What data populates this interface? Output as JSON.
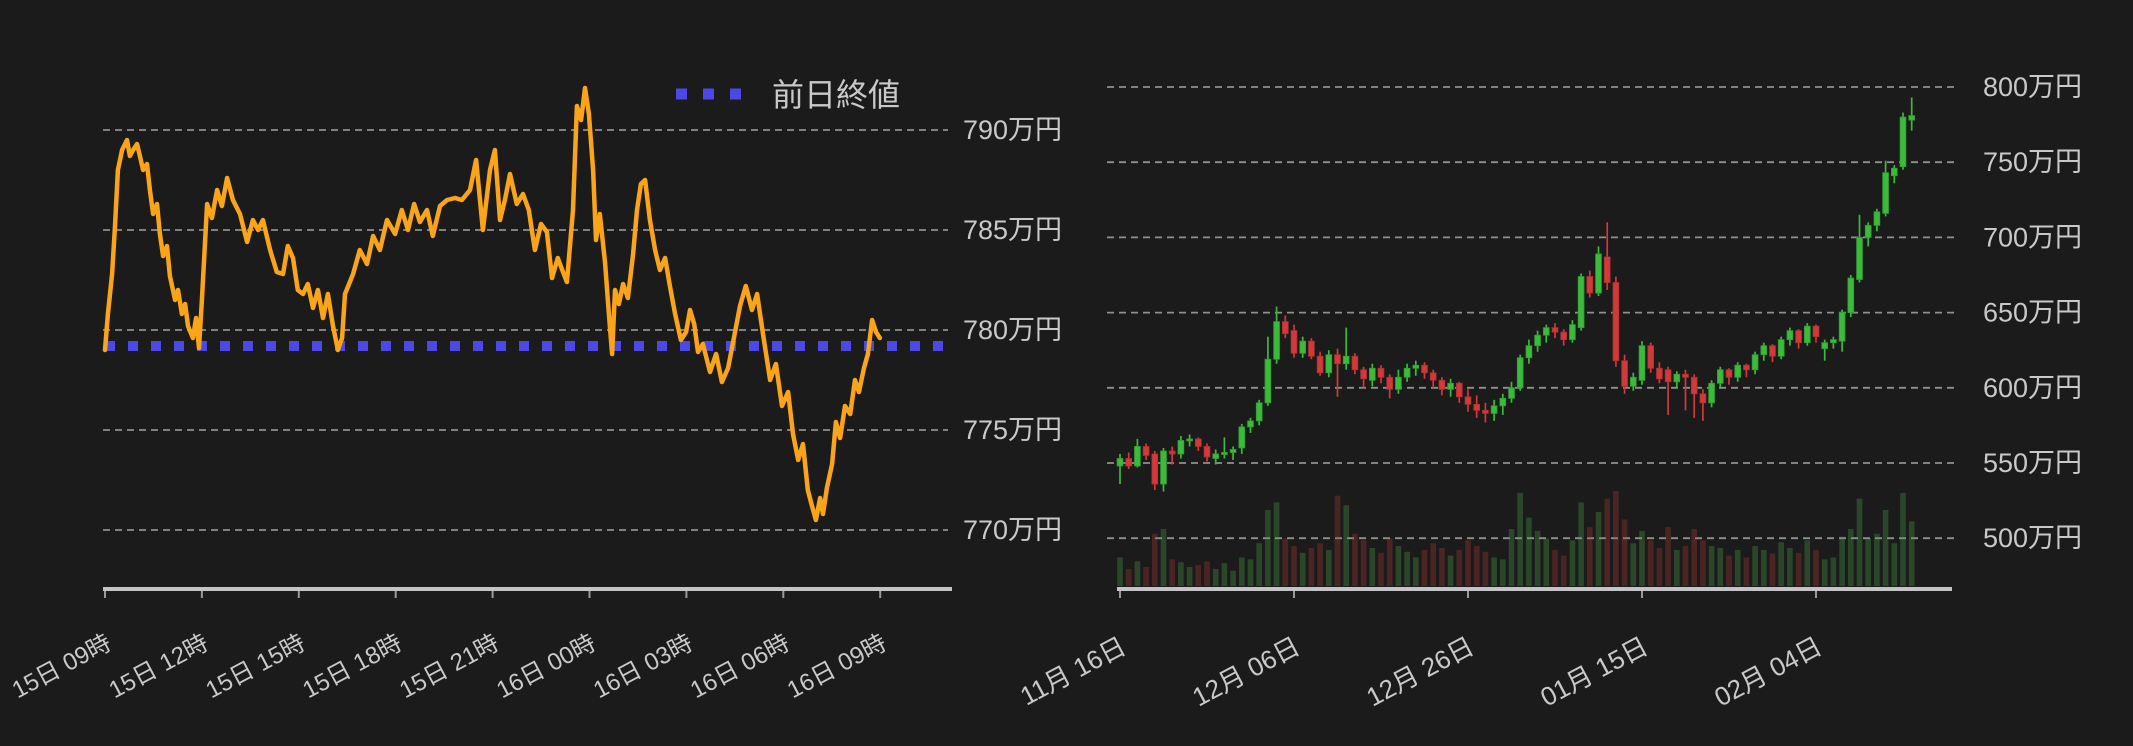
{
  "page": {
    "background": "#1b1b1c",
    "text_color": "#c9c9c9",
    "axis_color": "#c4c4c4",
    "grid_color": "#bdbdbd"
  },
  "legend": {
    "prev_close_label": "前日終値",
    "swatch_color": "#4a49e8"
  },
  "chart_data": [
    {
      "type": "line",
      "name": "intraday-price",
      "line_color": "#faa41a",
      "prev_close_value": 779.2,
      "prev_close_color": "#4a49e8",
      "unit": "万円",
      "y_ticks": [
        790,
        785,
        780,
        775,
        770
      ],
      "y_tick_labels": [
        "790万円",
        "785万円",
        "780万円",
        "775万円",
        "770万円"
      ],
      "x_tick_hours": [
        0,
        3,
        6,
        9,
        12,
        15,
        18,
        21,
        24
      ],
      "x_tick_labels": [
        "15日 09時",
        "15日 12時",
        "15日 15時",
        "15日 18時",
        "15日 21時",
        "16日 00時",
        "16日 03時",
        "16日 06時",
        "16日 09時"
      ],
      "points": [
        [
          0.0,
          779.0
        ],
        [
          0.09,
          780.8
        ],
        [
          0.22,
          782.8
        ],
        [
          0.31,
          785.2
        ],
        [
          0.4,
          788.0
        ],
        [
          0.53,
          789.0
        ],
        [
          0.68,
          789.5
        ],
        [
          0.77,
          788.7
        ],
        [
          0.87,
          789.0
        ],
        [
          0.99,
          789.3
        ],
        [
          1.08,
          788.7
        ],
        [
          1.18,
          788.0
        ],
        [
          1.3,
          788.3
        ],
        [
          1.39,
          787.0
        ],
        [
          1.49,
          785.8
        ],
        [
          1.61,
          786.3
        ],
        [
          1.7,
          784.8
        ],
        [
          1.8,
          783.7
        ],
        [
          1.92,
          784.2
        ],
        [
          2.01,
          782.7
        ],
        [
          2.17,
          781.5
        ],
        [
          2.26,
          782.0
        ],
        [
          2.38,
          780.8
        ],
        [
          2.48,
          781.3
        ],
        [
          2.57,
          780.2
        ],
        [
          2.72,
          779.6
        ],
        [
          2.82,
          780.6
        ],
        [
          2.91,
          779.1
        ],
        [
          3.0,
          781.5
        ],
        [
          3.16,
          786.3
        ],
        [
          3.31,
          785.6
        ],
        [
          3.47,
          787.0
        ],
        [
          3.62,
          786.2
        ],
        [
          3.78,
          787.6
        ],
        [
          3.96,
          786.5
        ],
        [
          4.18,
          785.8
        ],
        [
          4.4,
          784.4
        ],
        [
          4.58,
          785.5
        ],
        [
          4.74,
          785.0
        ],
        [
          4.89,
          785.5
        ],
        [
          5.11,
          784.0
        ],
        [
          5.32,
          782.9
        ],
        [
          5.51,
          782.8
        ],
        [
          5.66,
          784.2
        ],
        [
          5.82,
          783.6
        ],
        [
          5.97,
          782.0
        ],
        [
          6.13,
          781.8
        ],
        [
          6.28,
          782.3
        ],
        [
          6.44,
          781.1
        ],
        [
          6.59,
          782.0
        ],
        [
          6.75,
          780.6
        ],
        [
          6.9,
          781.8
        ],
        [
          7.06,
          780.2
        ],
        [
          7.21,
          779.0
        ],
        [
          7.34,
          779.6
        ],
        [
          7.43,
          781.8
        ],
        [
          7.68,
          782.8
        ],
        [
          7.89,
          784.0
        ],
        [
          8.11,
          783.3
        ],
        [
          8.3,
          784.7
        ],
        [
          8.51,
          784.0
        ],
        [
          8.73,
          785.5
        ],
        [
          8.98,
          784.8
        ],
        [
          9.19,
          786.0
        ],
        [
          9.38,
          785.0
        ],
        [
          9.57,
          786.3
        ],
        [
          9.75,
          785.4
        ],
        [
          9.97,
          786.0
        ],
        [
          10.15,
          784.7
        ],
        [
          10.37,
          786.2
        ],
        [
          10.59,
          786.5
        ],
        [
          10.84,
          786.6
        ],
        [
          11.05,
          786.5
        ],
        [
          11.3,
          787.0
        ],
        [
          11.49,
          788.5
        ],
        [
          11.7,
          785.0
        ],
        [
          11.92,
          788.0
        ],
        [
          12.07,
          789.0
        ],
        [
          12.23,
          785.5
        ],
        [
          12.38,
          786.5
        ],
        [
          12.54,
          787.8
        ],
        [
          12.75,
          786.3
        ],
        [
          12.94,
          786.8
        ],
        [
          13.12,
          786.0
        ],
        [
          13.31,
          784.0
        ],
        [
          13.5,
          785.3
        ],
        [
          13.68,
          784.9
        ],
        [
          13.84,
          782.6
        ],
        [
          14.02,
          783.6
        ],
        [
          14.18,
          782.9
        ],
        [
          14.3,
          782.4
        ],
        [
          14.49,
          786.0
        ],
        [
          14.61,
          791.2
        ],
        [
          14.74,
          790.5
        ],
        [
          14.86,
          792.1
        ],
        [
          14.98,
          790.8
        ],
        [
          15.11,
          788.0
        ],
        [
          15.2,
          784.5
        ],
        [
          15.32,
          785.8
        ],
        [
          15.48,
          783.4
        ],
        [
          15.6,
          780.8
        ],
        [
          15.7,
          778.8
        ],
        [
          15.79,
          782.0
        ],
        [
          15.91,
          781.3
        ],
        [
          16.04,
          782.3
        ],
        [
          16.19,
          781.6
        ],
        [
          16.35,
          783.8
        ],
        [
          16.47,
          786.0
        ],
        [
          16.59,
          787.3
        ],
        [
          16.72,
          787.5
        ],
        [
          16.87,
          785.5
        ],
        [
          17.03,
          784.0
        ],
        [
          17.18,
          783.0
        ],
        [
          17.34,
          783.6
        ],
        [
          17.49,
          782.2
        ],
        [
          17.65,
          780.8
        ],
        [
          17.83,
          779.5
        ],
        [
          17.99,
          779.9
        ],
        [
          18.11,
          781.0
        ],
        [
          18.24,
          780.3
        ],
        [
          18.36,
          778.9
        ],
        [
          18.51,
          779.3
        ],
        [
          18.73,
          777.9
        ],
        [
          18.92,
          778.8
        ],
        [
          19.1,
          777.4
        ],
        [
          19.29,
          778.1
        ],
        [
          19.47,
          779.6
        ],
        [
          19.66,
          781.2
        ],
        [
          19.84,
          782.2
        ],
        [
          20.03,
          781.0
        ],
        [
          20.19,
          781.8
        ],
        [
          20.37,
          779.8
        ],
        [
          20.59,
          777.5
        ],
        [
          20.77,
          778.3
        ],
        [
          20.96,
          776.2
        ],
        [
          21.15,
          776.9
        ],
        [
          21.3,
          774.8
        ],
        [
          21.46,
          773.5
        ],
        [
          21.61,
          774.3
        ],
        [
          21.76,
          772.0
        ],
        [
          21.89,
          771.2
        ],
        [
          22.01,
          770.5
        ],
        [
          22.14,
          771.6
        ],
        [
          22.23,
          770.8
        ],
        [
          22.35,
          772.1
        ],
        [
          22.51,
          773.3
        ],
        [
          22.63,
          775.4
        ],
        [
          22.76,
          774.6
        ],
        [
          22.91,
          776.2
        ],
        [
          23.07,
          775.8
        ],
        [
          23.22,
          777.5
        ],
        [
          23.34,
          776.9
        ],
        [
          23.5,
          778.1
        ],
        [
          23.62,
          778.8
        ],
        [
          23.75,
          780.5
        ],
        [
          23.87,
          779.9
        ],
        [
          23.99,
          779.6
        ]
      ]
    },
    {
      "type": "candlestick",
      "name": "daily-ohlc",
      "up_color": "#3cba3c",
      "down_color": "#d03a3a",
      "unit": "万円",
      "y_ticks": [
        800,
        750,
        700,
        650,
        600,
        550,
        500
      ],
      "y_tick_labels": [
        "800万円",
        "750万円",
        "700万円",
        "650万円",
        "600万円",
        "550万円",
        "500万円"
      ],
      "x_tick_indices": [
        0,
        20,
        40,
        60,
        80
      ],
      "x_tick_labels": [
        "11月 16日",
        "12月 06日",
        "12月 26日",
        "01月 15日",
        "02月 04日"
      ],
      "candles": [
        [
          548,
          556,
          536,
          553
        ],
        [
          553,
          557,
          546,
          548
        ],
        [
          548,
          566,
          547,
          561
        ],
        [
          561,
          563,
          552,
          555
        ],
        [
          556,
          558,
          532,
          536
        ],
        [
          536,
          560,
          531,
          558
        ],
        [
          558,
          561,
          549,
          556
        ],
        [
          556,
          568,
          553,
          565
        ],
        [
          565,
          569,
          561,
          566
        ],
        [
          566,
          567,
          558,
          561
        ],
        [
          561,
          563,
          551,
          554
        ],
        [
          553,
          559,
          549,
          556
        ],
        [
          556,
          567,
          553,
          557
        ],
        [
          557,
          561,
          552,
          559
        ],
        [
          560,
          576,
          556,
          574
        ],
        [
          574,
          580,
          570,
          578
        ],
        [
          578,
          592,
          575,
          590
        ],
        [
          590,
          634,
          588,
          619
        ],
        [
          619,
          654,
          616,
          644
        ],
        [
          644,
          648,
          633,
          636
        ],
        [
          638,
          642,
          620,
          623
        ],
        [
          623,
          634,
          620,
          631
        ],
        [
          631,
          633,
          619,
          621
        ],
        [
          621,
          624,
          608,
          610
        ],
        [
          610,
          625,
          607,
          622
        ],
        [
          622,
          626,
          594,
          616
        ],
        [
          616,
          640,
          612,
          621
        ],
        [
          621,
          623,
          609,
          612
        ],
        [
          612,
          614,
          600,
          606
        ],
        [
          605,
          616,
          601,
          613
        ],
        [
          613,
          615,
          603,
          607
        ],
        [
          607,
          609,
          593,
          599
        ],
        [
          599,
          612,
          596,
          607
        ],
        [
          607,
          616,
          604,
          613
        ],
        [
          613,
          618,
          608,
          615
        ],
        [
          615,
          617,
          606,
          610
        ],
        [
          610,
          612,
          600,
          605
        ],
        [
          605,
          607,
          595,
          599
        ],
        [
          599,
          606,
          594,
          603
        ],
        [
          603,
          604,
          590,
          594
        ],
        [
          594,
          599,
          584,
          589
        ],
        [
          589,
          595,
          580,
          585
        ],
        [
          585,
          590,
          577,
          583
        ],
        [
          583,
          592,
          578,
          588
        ],
        [
          588,
          596,
          582,
          593
        ],
        [
          593,
          604,
          590,
          600
        ],
        [
          600,
          622,
          598,
          620
        ],
        [
          620,
          632,
          616,
          628
        ],
        [
          628,
          638,
          624,
          635
        ],
        [
          635,
          642,
          630,
          640
        ],
        [
          640,
          643,
          633,
          637
        ],
        [
          637,
          639,
          628,
          632
        ],
        [
          632,
          645,
          630,
          642
        ],
        [
          640,
          676,
          638,
          674
        ],
        [
          674,
          678,
          660,
          663
        ],
        [
          663,
          694,
          661,
          689
        ],
        [
          687,
          710,
          665,
          670
        ],
        [
          670,
          674,
          614,
          618
        ],
        [
          618,
          622,
          596,
          601
        ],
        [
          601,
          610,
          598,
          607
        ],
        [
          605,
          631,
          602,
          628
        ],
        [
          628,
          630,
          610,
          613
        ],
        [
          613,
          617,
          603,
          606
        ],
        [
          612,
          614,
          582,
          604
        ],
        [
          604,
          611,
          600,
          609
        ],
        [
          609,
          612,
          585,
          607
        ],
        [
          607,
          609,
          580,
          596
        ],
        [
          596,
          599,
          578,
          590
        ],
        [
          590,
          605,
          587,
          603
        ],
        [
          603,
          614,
          600,
          612
        ],
        [
          612,
          613,
          602,
          607
        ],
        [
          607,
          617,
          604,
          615
        ],
        [
          615,
          616,
          607,
          612
        ],
        [
          612,
          624,
          609,
          622
        ],
        [
          622,
          630,
          618,
          628
        ],
        [
          628,
          629,
          617,
          621
        ],
        [
          621,
          634,
          619,
          632
        ],
        [
          632,
          640,
          628,
          638
        ],
        [
          638,
          639,
          626,
          630
        ],
        [
          630,
          643,
          628,
          641
        ],
        [
          641,
          642,
          630,
          634
        ],
        [
          626,
          632,
          618,
          630
        ],
        [
          630,
          634,
          626,
          632
        ],
        [
          631,
          652,
          624,
          650
        ],
        [
          650,
          675,
          647,
          673
        ],
        [
          672,
          715,
          670,
          700
        ],
        [
          700,
          710,
          694,
          708
        ],
        [
          708,
          719,
          704,
          717
        ],
        [
          716,
          751,
          714,
          743
        ],
        [
          741,
          748,
          736,
          746
        ],
        [
          747,
          783,
          745,
          780
        ],
        [
          778,
          793,
          771,
          781
        ]
      ],
      "volume": [
        30,
        18,
        26,
        20,
        55,
        60,
        28,
        25,
        20,
        22,
        26,
        18,
        24,
        16,
        30,
        28,
        45,
        80,
        88,
        50,
        42,
        35,
        40,
        45,
        38,
        95,
        85,
        55,
        48,
        40,
        35,
        50,
        42,
        36,
        30,
        38,
        45,
        40,
        32,
        38,
        48,
        42,
        36,
        30,
        28,
        60,
        98,
        72,
        58,
        50,
        38,
        32,
        48,
        88,
        62,
        78,
        92,
        100,
        70,
        45,
        58,
        48,
        40,
        62,
        38,
        42,
        60,
        48,
        42,
        40,
        32,
        38,
        30,
        42,
        38,
        34,
        46,
        40,
        35,
        48,
        38,
        28,
        30,
        52,
        60,
        92,
        50,
        55,
        80,
        45,
        98,
        68
      ]
    }
  ]
}
